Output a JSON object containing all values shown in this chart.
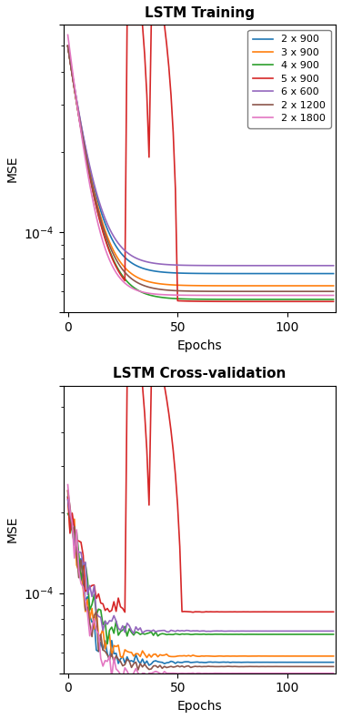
{
  "title_top": "LSTM Training",
  "title_bottom": "LSTM Cross-validation",
  "xlabel": "Epochs",
  "ylabel": "MSE",
  "ylim": [
    5e-05,
    0.0006
  ],
  "xlim": [
    -2,
    122
  ],
  "legend_labels": [
    "2 x 900",
    "3 x 900",
    "4 x 900",
    "5 x 900",
    "6 x 600",
    "2 x 1200",
    "2 x 1800"
  ],
  "colors": [
    "#1f77b4",
    "#ff7f0e",
    "#2ca02c",
    "#d62728",
    "#9467bd",
    "#8c564b",
    "#e377c2"
  ],
  "figsize": [
    3.76,
    7.9
  ],
  "dpi": 100
}
